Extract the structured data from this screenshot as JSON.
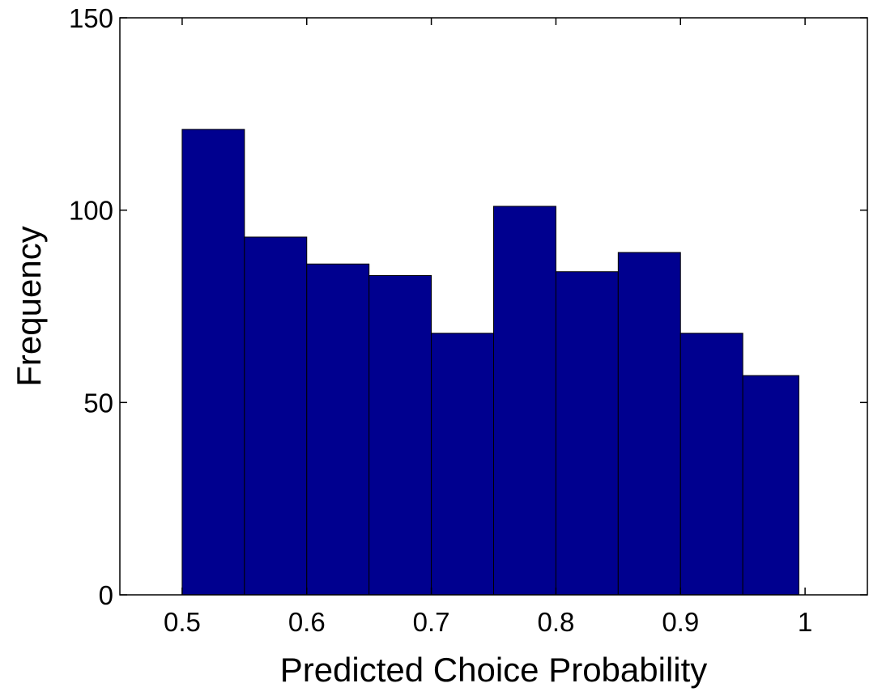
{
  "chart_data": {
    "type": "bar",
    "histogram": true,
    "bin_edges": [
      0.5,
      0.55,
      0.6,
      0.65,
      0.7,
      0.75,
      0.8,
      0.85,
      0.9,
      0.95,
      0.995
    ],
    "values": [
      121,
      93,
      86,
      83,
      68,
      101,
      84,
      89,
      68,
      57
    ],
    "xlabel": "Predicted Choice Probability",
    "ylabel": "Frequency",
    "xlim": [
      0.45,
      1.05
    ],
    "ylim": [
      0,
      150
    ],
    "xticks": [
      0.5,
      0.6,
      0.7,
      0.8,
      0.9,
      1
    ],
    "xtick_labels": [
      "0.5",
      "0.6",
      "0.7",
      "0.8",
      "0.9",
      "1"
    ],
    "yticks": [
      0,
      50,
      100,
      150
    ],
    "ytick_labels": [
      "0",
      "50",
      "100",
      "150"
    ],
    "grid": false,
    "legend": "none",
    "bar_color": "#00008f",
    "edge_color": "#000000"
  }
}
